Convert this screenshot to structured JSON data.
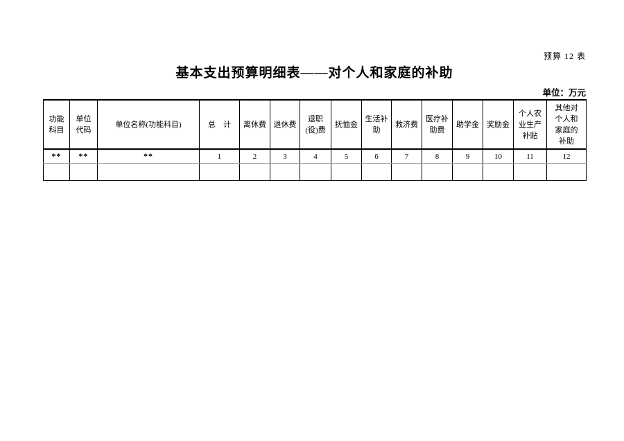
{
  "page": {
    "corner_label": "预算 12 表",
    "title": "基本支出预算明细表——对个人和家庭的补助",
    "unit_label": "单位：万元"
  },
  "table": {
    "headers": [
      "功能\n科目",
      "单位\n代码",
      "单位名称(功能科目)",
      "总　计",
      "离休费",
      "退休费",
      "退职\n(役)费",
      "抚恤金",
      "生活补\n助",
      "救济费",
      "医疗补\n助费",
      "助学金",
      "奖励金",
      "个人农\n业生产\n补贴",
      "其他对\n个人和\n家庭的\n补助"
    ],
    "code_row": [
      "**",
      "**",
      "**",
      "1",
      "2",
      "3",
      "4",
      "5",
      "6",
      "7",
      "8",
      "9",
      "10",
      "11",
      "12"
    ],
    "empty_row": [
      "",
      "",
      "",
      "",
      "",
      "",
      "",
      "",
      "",
      "",
      "",
      "",
      "",
      "",
      ""
    ]
  }
}
